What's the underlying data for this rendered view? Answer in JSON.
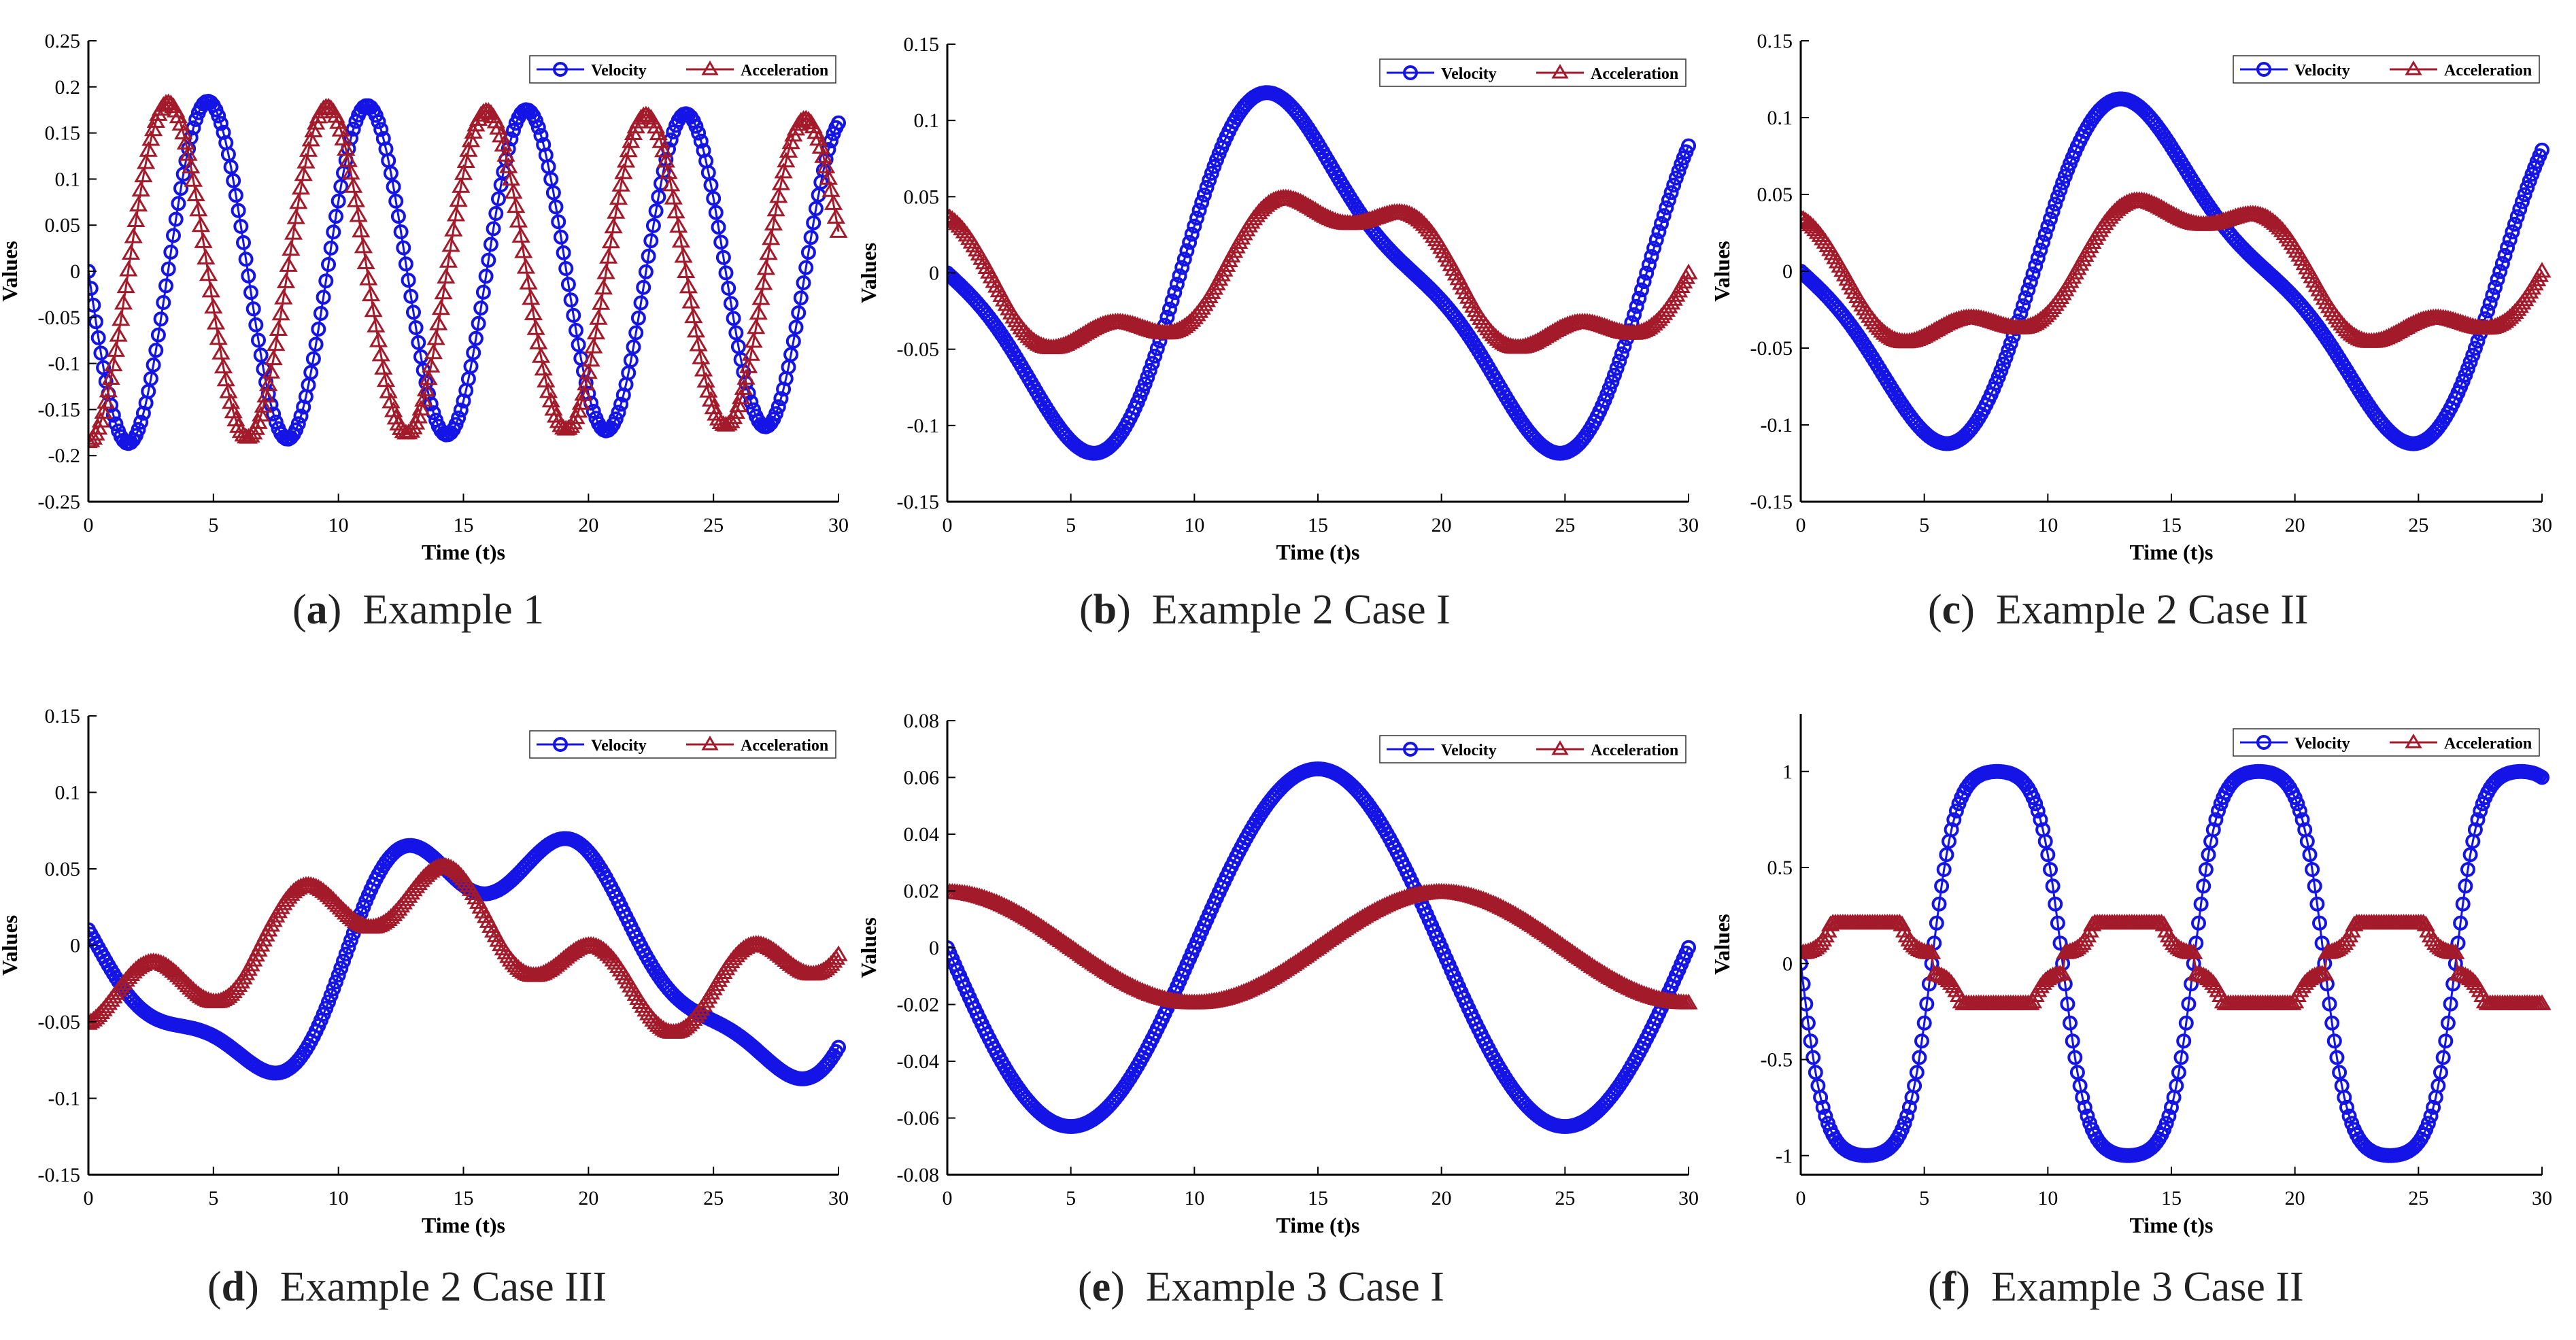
{
  "colors": {
    "velocity": "#1414E6",
    "acceleration": "#A31A2B",
    "axis": "#000000"
  },
  "chart_data": [
    {
      "panel": "a",
      "caption_label": "a",
      "caption_text": "Example 1",
      "type": "line",
      "title": "",
      "xlabel": "Time (t)s",
      "ylabel": "Values",
      "xlim": [
        0,
        30
      ],
      "ylim": [
        -0.25,
        0.25
      ],
      "xticks": [
        "0",
        "5",
        "10",
        "15",
        "20",
        "25",
        "30"
      ],
      "yticks": [
        "-0.25",
        "-0.2",
        "-0.15",
        "-0.1",
        "-0.05",
        "0",
        "0.05",
        "0.1",
        "0.15",
        "0.2",
        "0.25"
      ],
      "legend": "top-right",
      "series": [
        {
          "name": "Velocity",
          "marker": "circle",
          "components": [
            {
              "a": -0.188,
              "w": 0.986,
              "p": 0
            }
          ],
          "decay": 0.004
        },
        {
          "name": "Acceleration",
          "marker": "triangle",
          "components": [
            {
              "a": -0.185,
              "w": 0.986,
              "p": 1.5708
            }
          ],
          "decay": 0.004
        }
      ]
    },
    {
      "panel": "b",
      "caption_label": "b",
      "caption_text": "Example 2 Case I",
      "type": "line",
      "title": "",
      "xlabel": "Time (t)s",
      "ylabel": "Values",
      "xlim": [
        0,
        30
      ],
      "ylim": [
        -0.15,
        0.15
      ],
      "xticks": [
        "0",
        "5",
        "10",
        "15",
        "20",
        "25",
        "30"
      ],
      "yticks": [
        "-0.15",
        "-0.1",
        "-0.05",
        "0",
        "0.05",
        "0.1",
        "0.15"
      ],
      "legend": "top-right",
      "series": [
        {
          "name": "Velocity",
          "marker": "circle",
          "components": [
            {
              "a": -0.105,
              "w": 0.333,
              "p": 0
            },
            {
              "a": 0.03,
              "w": 0.666,
              "p": 0
            }
          ]
        },
        {
          "name": "Acceleration",
          "marker": "triangle",
          "components": [
            {
              "a": -0.048,
              "w": 0.333,
              "p": -0.5
            },
            {
              "a": 0.015,
              "w": 1.0,
              "p": 1.2
            }
          ]
        }
      ]
    },
    {
      "panel": "c",
      "caption_label": "c",
      "caption_text": "Example 2 Case II",
      "type": "line",
      "title": "",
      "xlabel": "Time (t)s",
      "ylabel": "Values",
      "xlim": [
        0,
        30
      ],
      "ylim": [
        -0.15,
        0.15
      ],
      "xticks": [
        "0",
        "5",
        "10",
        "15",
        "20",
        "25",
        "30"
      ],
      "yticks": [
        "-0.15",
        "-0.1",
        "-0.05",
        "0",
        "0.05",
        "0.1",
        "0.15"
      ],
      "legend": "top-right",
      "series": [
        {
          "name": "Velocity",
          "marker": "circle",
          "components": [
            {
              "a": -0.1,
              "w": 0.333,
              "p": 0
            },
            {
              "a": 0.028,
              "w": 0.666,
              "p": 0
            }
          ]
        },
        {
          "name": "Acceleration",
          "marker": "triangle",
          "components": [
            {
              "a": -0.045,
              "w": 0.333,
              "p": -0.5
            },
            {
              "a": 0.014,
              "w": 1.0,
              "p": 1.2
            }
          ]
        }
      ]
    },
    {
      "panel": "d",
      "caption_label": "d",
      "caption_text": "Example 2 Case III",
      "type": "line",
      "title": "",
      "xlabel": "Time (t)s",
      "ylabel": "Values",
      "xlim": [
        0,
        30
      ],
      "ylim": [
        -0.15,
        0.15
      ],
      "xticks": [
        "0",
        "5",
        "10",
        "15",
        "20",
        "25",
        "30"
      ],
      "yticks": [
        "-0.15",
        "-0.1",
        "-0.05",
        "0",
        "0.05",
        "0.1",
        "0.15"
      ],
      "legend": "top-right",
      "series": [
        {
          "name": "Velocity",
          "marker": "circle",
          "components": [
            {
              "a": -0.07,
              "w": 0.285,
              "p": 0
            },
            {
              "a": -0.02,
              "w": 0.9,
              "p": 0
            },
            {
              "a": 0.018,
              "w": 0.62,
              "p": 0.6
            }
          ]
        },
        {
          "name": "Acceleration",
          "marker": "triangle",
          "components": [
            {
              "a": -0.035,
              "w": 0.285,
              "p": 1.2
            },
            {
              "a": 0.022,
              "w": 1.05,
              "p": -1.0
            }
          ]
        }
      ]
    },
    {
      "panel": "e",
      "caption_label": "e",
      "caption_text": "Example 3 Case I",
      "type": "line",
      "title": "",
      "xlabel": "Time (t)s",
      "ylabel": "Values",
      "xlim": [
        0,
        30
      ],
      "ylim": [
        -0.08,
        0.08
      ],
      "xticks": [
        "0",
        "5",
        "10",
        "15",
        "20",
        "25",
        "30"
      ],
      "yticks": [
        "-0.08",
        "-0.06",
        "-0.04",
        "-0.02",
        "0",
        "0.02",
        "0.04",
        "0.06",
        "0.08"
      ],
      "legend": "top-right",
      "series": [
        {
          "name": "Velocity",
          "marker": "circle",
          "components": [
            {
              "a": -0.063,
              "w": 0.3142,
              "p": 0
            }
          ]
        },
        {
          "name": "Acceleration",
          "marker": "triangle",
          "components": [
            {
              "a": -0.0195,
              "w": 0.3142,
              "p": -1.5708
            }
          ]
        }
      ]
    },
    {
      "panel": "f",
      "caption_label": "f",
      "caption_text": "Example 3 Case II",
      "type": "line",
      "title": "",
      "xlabel": "Time (t)s",
      "ylabel": "Values",
      "xlim": [
        0,
        30
      ],
      "ylim": [
        -1.1,
        1.3
      ],
      "xticks": [
        "0",
        "5",
        "10",
        "15",
        "20",
        "25",
        "30"
      ],
      "yticks": [
        "-1",
        "-0.5",
        "0",
        "0.5",
        "1"
      ],
      "legend": "top-right",
      "series": [
        {
          "name": "Velocity",
          "marker": "circle",
          "kind": "sn",
          "period": 10.6,
          "k": 0.97,
          "amp": -1.0
        },
        {
          "name": "Acceleration",
          "marker": "triangle",
          "kind": "snd",
          "period": 10.6,
          "k": 0.97,
          "scale": 0.21
        }
      ]
    }
  ]
}
